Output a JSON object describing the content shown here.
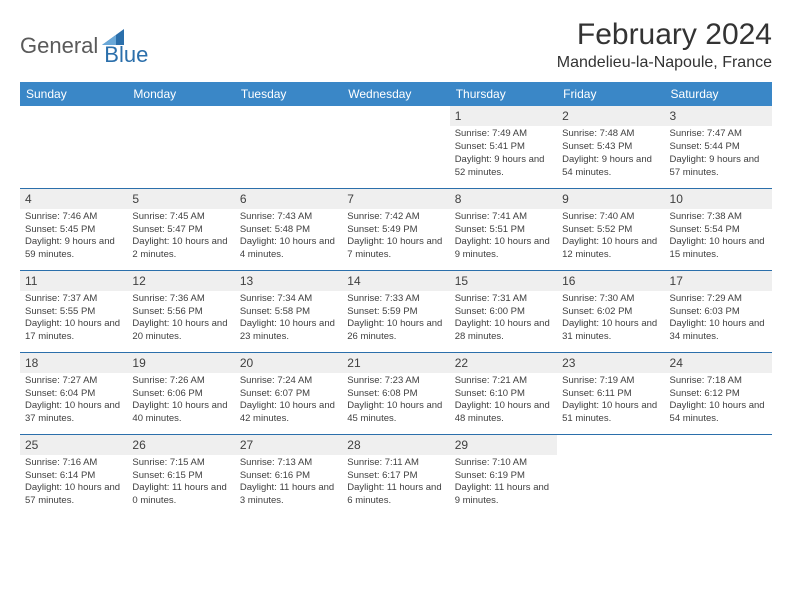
{
  "brand": {
    "part1": "General",
    "part2": "Blue"
  },
  "title": "February 2024",
  "location": "Mandelieu-la-Napoule, France",
  "colors": {
    "header_bg": "#3a87c7",
    "header_text": "#ffffff",
    "border": "#2b6fab",
    "daybar_bg": "#efefef",
    "text": "#404040",
    "brand_gray": "#5a5a5a",
    "brand_blue": "#2b6fab",
    "page_bg": "#ffffff"
  },
  "fonts": {
    "title_size_pt": 22,
    "location_size_pt": 12,
    "header_size_pt": 9,
    "body_size_pt": 7,
    "family": "Arial"
  },
  "days_of_week": [
    "Sunday",
    "Monday",
    "Tuesday",
    "Wednesday",
    "Thursday",
    "Friday",
    "Saturday"
  ],
  "weeks": [
    [
      {
        "day": null
      },
      {
        "day": null
      },
      {
        "day": null
      },
      {
        "day": null
      },
      {
        "day": 1,
        "sunrise": "7:49 AM",
        "sunset": "5:41 PM",
        "daylight": "9 hours and 52 minutes."
      },
      {
        "day": 2,
        "sunrise": "7:48 AM",
        "sunset": "5:43 PM",
        "daylight": "9 hours and 54 minutes."
      },
      {
        "day": 3,
        "sunrise": "7:47 AM",
        "sunset": "5:44 PM",
        "daylight": "9 hours and 57 minutes."
      }
    ],
    [
      {
        "day": 4,
        "sunrise": "7:46 AM",
        "sunset": "5:45 PM",
        "daylight": "9 hours and 59 minutes."
      },
      {
        "day": 5,
        "sunrise": "7:45 AM",
        "sunset": "5:47 PM",
        "daylight": "10 hours and 2 minutes."
      },
      {
        "day": 6,
        "sunrise": "7:43 AM",
        "sunset": "5:48 PM",
        "daylight": "10 hours and 4 minutes."
      },
      {
        "day": 7,
        "sunrise": "7:42 AM",
        "sunset": "5:49 PM",
        "daylight": "10 hours and 7 minutes."
      },
      {
        "day": 8,
        "sunrise": "7:41 AM",
        "sunset": "5:51 PM",
        "daylight": "10 hours and 9 minutes."
      },
      {
        "day": 9,
        "sunrise": "7:40 AM",
        "sunset": "5:52 PM",
        "daylight": "10 hours and 12 minutes."
      },
      {
        "day": 10,
        "sunrise": "7:38 AM",
        "sunset": "5:54 PM",
        "daylight": "10 hours and 15 minutes."
      }
    ],
    [
      {
        "day": 11,
        "sunrise": "7:37 AM",
        "sunset": "5:55 PM",
        "daylight": "10 hours and 17 minutes."
      },
      {
        "day": 12,
        "sunrise": "7:36 AM",
        "sunset": "5:56 PM",
        "daylight": "10 hours and 20 minutes."
      },
      {
        "day": 13,
        "sunrise": "7:34 AM",
        "sunset": "5:58 PM",
        "daylight": "10 hours and 23 minutes."
      },
      {
        "day": 14,
        "sunrise": "7:33 AM",
        "sunset": "5:59 PM",
        "daylight": "10 hours and 26 minutes."
      },
      {
        "day": 15,
        "sunrise": "7:31 AM",
        "sunset": "6:00 PM",
        "daylight": "10 hours and 28 minutes."
      },
      {
        "day": 16,
        "sunrise": "7:30 AM",
        "sunset": "6:02 PM",
        "daylight": "10 hours and 31 minutes."
      },
      {
        "day": 17,
        "sunrise": "7:29 AM",
        "sunset": "6:03 PM",
        "daylight": "10 hours and 34 minutes."
      }
    ],
    [
      {
        "day": 18,
        "sunrise": "7:27 AM",
        "sunset": "6:04 PM",
        "daylight": "10 hours and 37 minutes."
      },
      {
        "day": 19,
        "sunrise": "7:26 AM",
        "sunset": "6:06 PM",
        "daylight": "10 hours and 40 minutes."
      },
      {
        "day": 20,
        "sunrise": "7:24 AM",
        "sunset": "6:07 PM",
        "daylight": "10 hours and 42 minutes."
      },
      {
        "day": 21,
        "sunrise": "7:23 AM",
        "sunset": "6:08 PM",
        "daylight": "10 hours and 45 minutes."
      },
      {
        "day": 22,
        "sunrise": "7:21 AM",
        "sunset": "6:10 PM",
        "daylight": "10 hours and 48 minutes."
      },
      {
        "day": 23,
        "sunrise": "7:19 AM",
        "sunset": "6:11 PM",
        "daylight": "10 hours and 51 minutes."
      },
      {
        "day": 24,
        "sunrise": "7:18 AM",
        "sunset": "6:12 PM",
        "daylight": "10 hours and 54 minutes."
      }
    ],
    [
      {
        "day": 25,
        "sunrise": "7:16 AM",
        "sunset": "6:14 PM",
        "daylight": "10 hours and 57 minutes."
      },
      {
        "day": 26,
        "sunrise": "7:15 AM",
        "sunset": "6:15 PM",
        "daylight": "11 hours and 0 minutes."
      },
      {
        "day": 27,
        "sunrise": "7:13 AM",
        "sunset": "6:16 PM",
        "daylight": "11 hours and 3 minutes."
      },
      {
        "day": 28,
        "sunrise": "7:11 AM",
        "sunset": "6:17 PM",
        "daylight": "11 hours and 6 minutes."
      },
      {
        "day": 29,
        "sunrise": "7:10 AM",
        "sunset": "6:19 PM",
        "daylight": "11 hours and 9 minutes."
      },
      {
        "day": null
      },
      {
        "day": null
      }
    ]
  ],
  "labels": {
    "sunrise": "Sunrise:",
    "sunset": "Sunset:",
    "daylight": "Daylight:"
  }
}
